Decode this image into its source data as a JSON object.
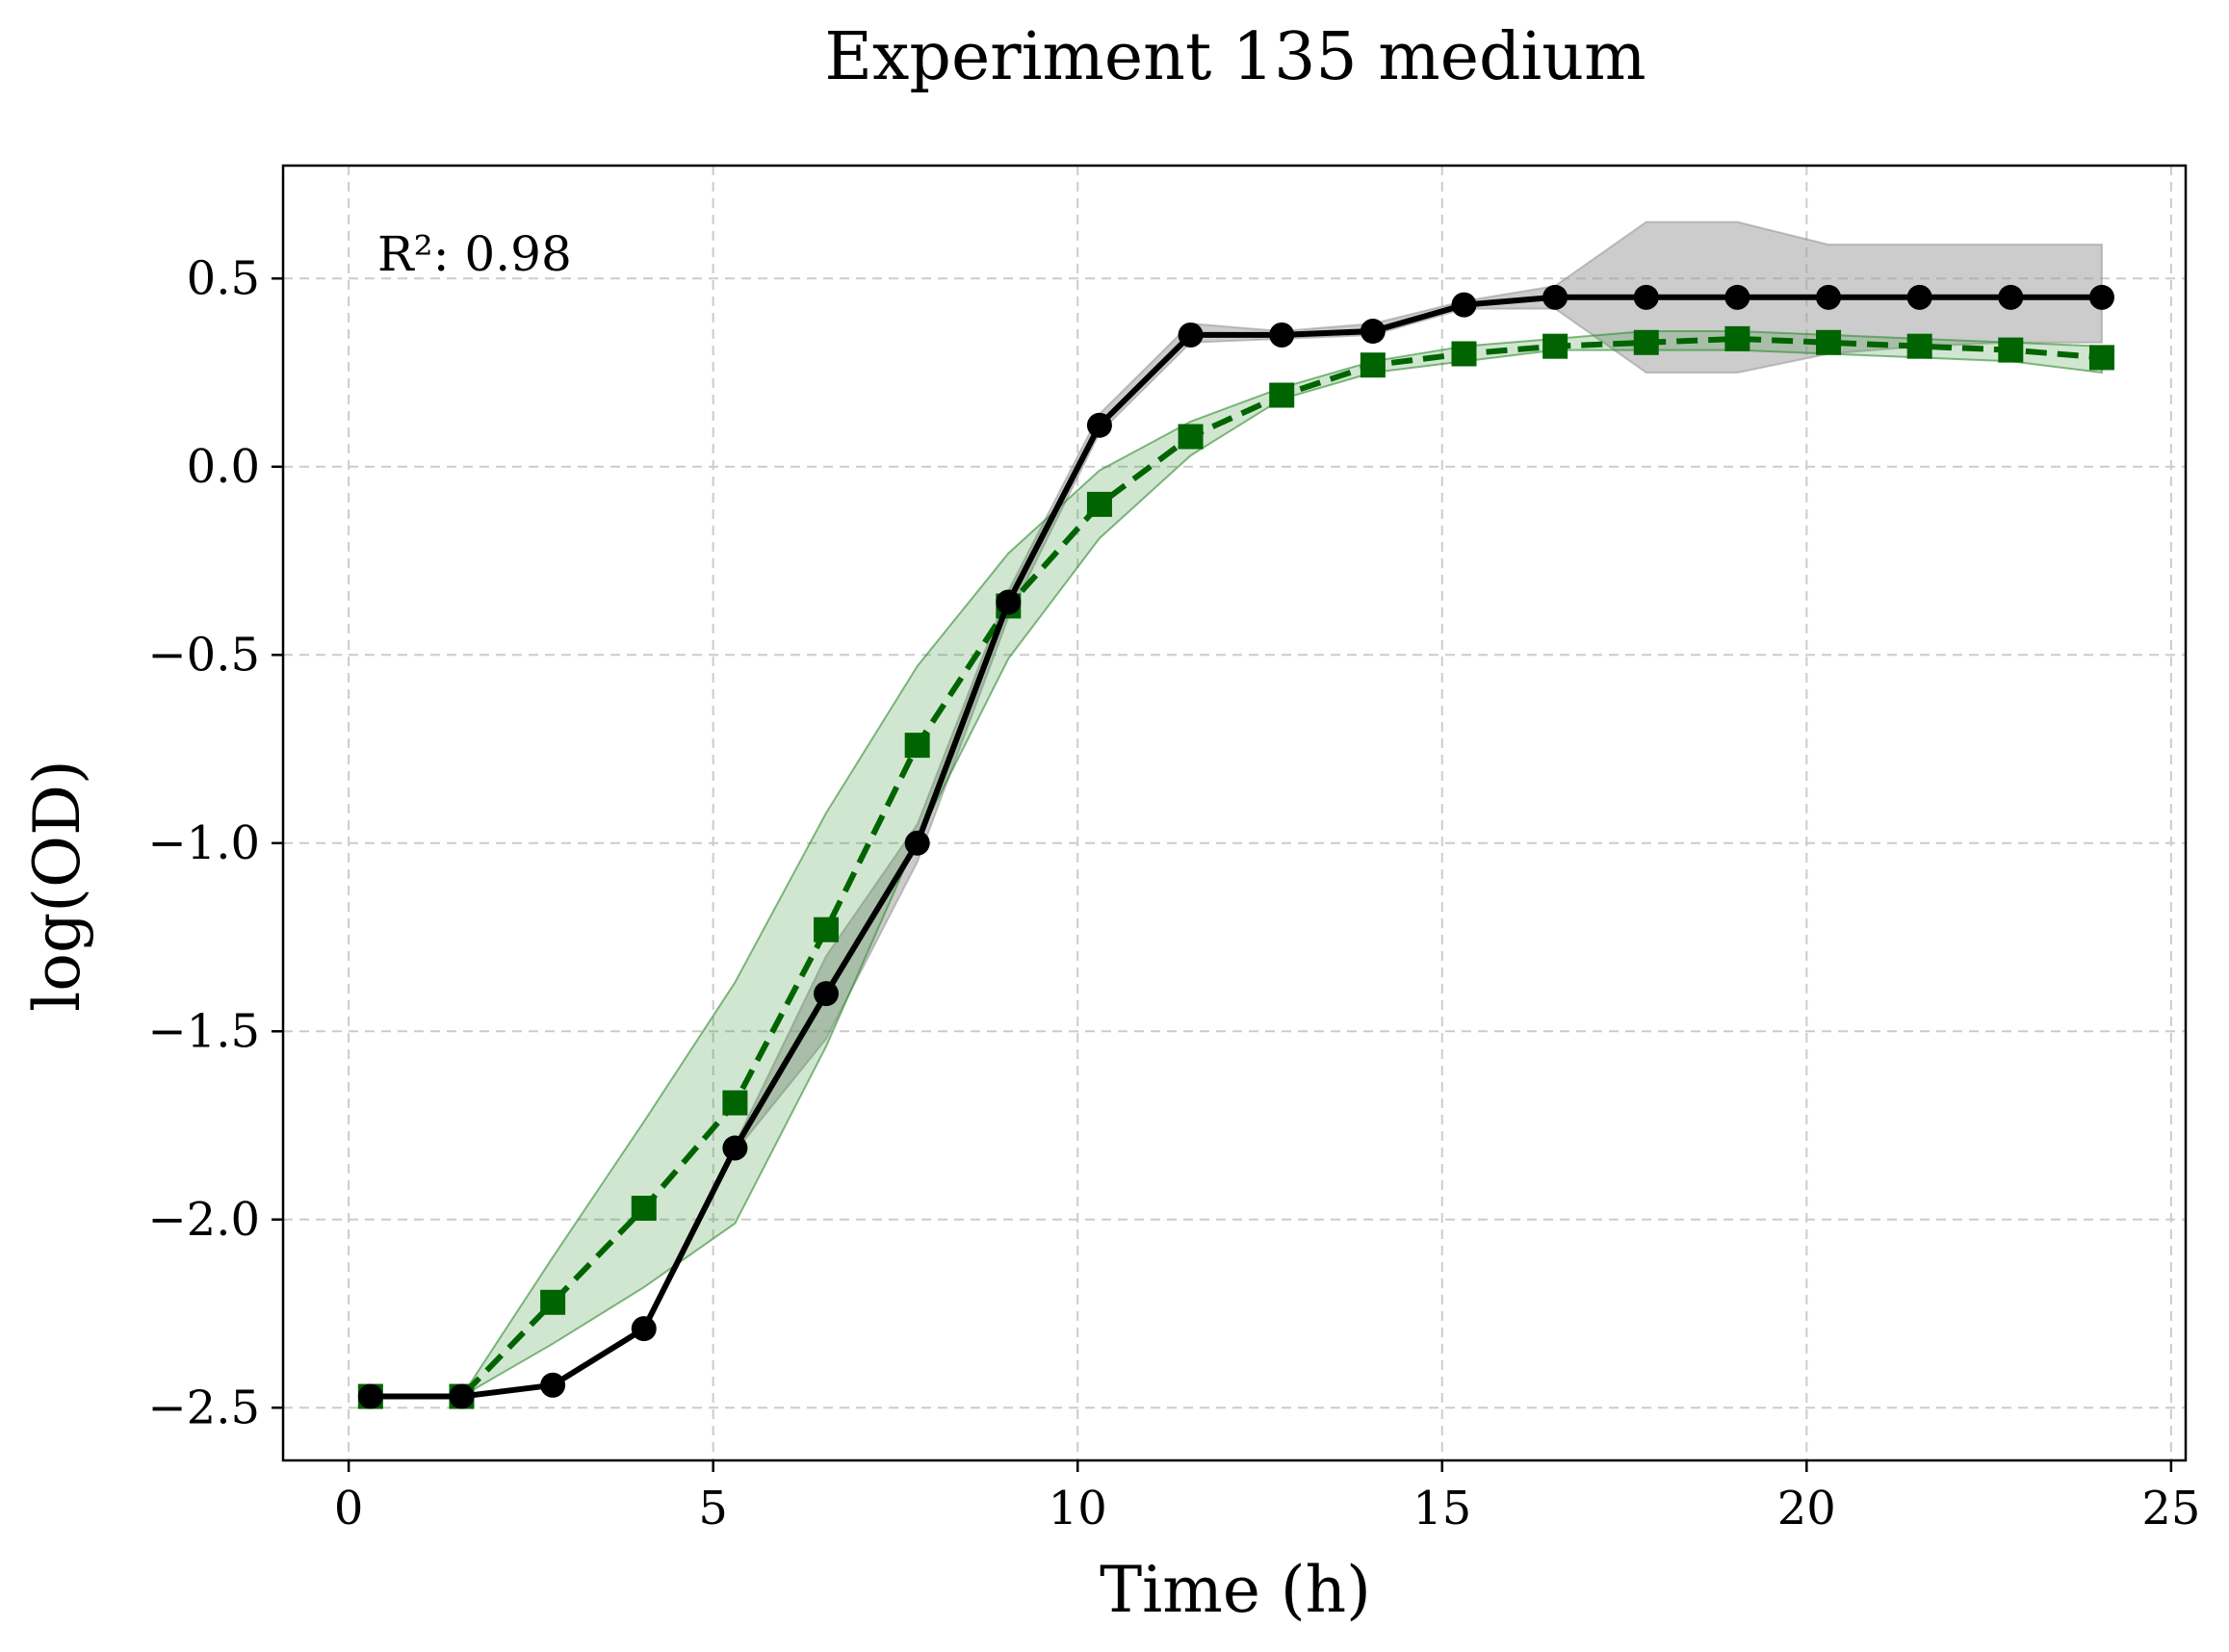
{
  "chart_data": {
    "type": "line",
    "title": "Experiment 135 medium",
    "xlabel": "Time (h)",
    "ylabel": "log(OD)",
    "xlim": [
      -0.9,
      25.2
    ],
    "ylim": [
      -2.64,
      0.8
    ],
    "xticks": [
      0,
      5,
      10,
      15,
      20,
      25
    ],
    "xtick_labels": [
      "0",
      "5",
      "10",
      "15",
      "20",
      "25"
    ],
    "yticks": [
      0.5,
      0.0,
      -0.5,
      -1.0,
      -1.5,
      -2.0,
      -2.5
    ],
    "ytick_labels": [
      "0.5",
      "0.0",
      "−0.5",
      "−1.0",
      "−1.5",
      "−2.0",
      "−2.5"
    ],
    "grid": true,
    "annotation": "R²: 0.98",
    "x": [
      0.3,
      1.55,
      2.8,
      4.05,
      5.3,
      6.55,
      7.8,
      9.05,
      10.3,
      11.55,
      12.8,
      14.05,
      15.3,
      16.55,
      17.8,
      19.05,
      20.3,
      21.55,
      22.8,
      24.05
    ],
    "series": [
      {
        "color": "#000000",
        "line_style": "solid",
        "marker": "circle",
        "values": [
          -2.47,
          -2.47,
          -2.44,
          -2.29,
          -1.81,
          -1.4,
          -1.0,
          -0.36,
          0.11,
          0.35,
          0.35,
          0.36,
          0.43,
          0.45,
          0.45,
          0.45,
          0.45,
          0.45,
          0.45,
          0.45
        ],
        "band_lower": [
          -2.47,
          -2.47,
          -2.44,
          -2.29,
          -1.82,
          -1.52,
          -1.05,
          -0.4,
          0.09,
          0.33,
          0.34,
          0.35,
          0.42,
          0.42,
          0.25,
          0.25,
          0.3,
          0.32,
          0.33,
          0.33
        ],
        "band_upper": [
          -2.47,
          -2.47,
          -2.44,
          -2.29,
          -1.8,
          -1.3,
          -0.95,
          -0.33,
          0.14,
          0.38,
          0.36,
          0.38,
          0.44,
          0.48,
          0.65,
          0.65,
          0.59,
          0.59,
          0.59,
          0.59
        ],
        "band_color": "#999999"
      },
      {
        "color": "#006400",
        "line_style": "dashed",
        "marker": "square",
        "values": [
          -2.47,
          -2.47,
          -2.22,
          -1.97,
          -1.69,
          -1.23,
          -0.74,
          -0.37,
          -0.1,
          0.08,
          0.19,
          0.27,
          0.3,
          0.32,
          0.33,
          0.34,
          0.33,
          0.32,
          0.31,
          0.29
        ],
        "band_lower": [
          -2.47,
          -2.47,
          -2.33,
          -2.18,
          -2.01,
          -1.54,
          -0.99,
          -0.51,
          -0.19,
          0.03,
          0.18,
          0.25,
          0.28,
          0.31,
          0.31,
          0.31,
          0.3,
          0.29,
          0.28,
          0.25
        ],
        "band_upper": [
          -2.47,
          -2.47,
          -2.1,
          -1.74,
          -1.37,
          -0.92,
          -0.53,
          -0.23,
          -0.01,
          0.12,
          0.21,
          0.28,
          0.32,
          0.34,
          0.36,
          0.36,
          0.35,
          0.34,
          0.33,
          0.32
        ],
        "band_color": "#2e8b2e"
      }
    ]
  }
}
